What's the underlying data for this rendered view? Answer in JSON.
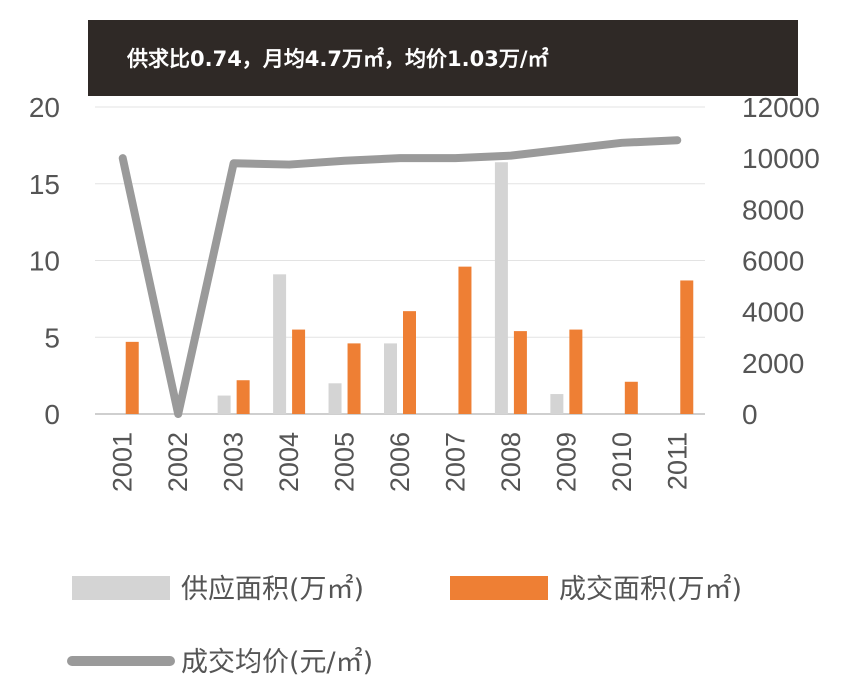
{
  "chart_data": {
    "type": "bar",
    "title": "供求比0.74，月均4.7万㎡，均价1.03万/㎡",
    "categories": [
      "2001",
      "2002",
      "2003",
      "2004",
      "2005",
      "2006",
      "2007",
      "2008",
      "2009",
      "2010",
      "2011"
    ],
    "series": [
      {
        "name": "供应面积(万㎡)",
        "type": "bar",
        "axis": "left",
        "color": "#d4d4d4",
        "values": [
          0,
          0,
          1.2,
          9.1,
          2.0,
          4.6,
          0,
          16.4,
          1.3,
          0,
          0
        ]
      },
      {
        "name": "成交面积(万㎡)",
        "type": "bar",
        "axis": "left",
        "color": "#ee7f34",
        "values": [
          4.7,
          0,
          2.2,
          5.5,
          4.6,
          6.7,
          9.6,
          5.4,
          5.5,
          2.1,
          8.7
        ]
      },
      {
        "name": "成交均价(元/㎡)",
        "type": "line",
        "axis": "right",
        "color": "#9a9a9a",
        "values": [
          10000,
          0,
          9800,
          9750,
          9900,
          10000,
          10000,
          10100,
          10350,
          10600,
          10700
        ]
      }
    ],
    "y_left": {
      "ylim": [
        0,
        20
      ],
      "ticks": [
        "0",
        "5",
        "10",
        "15",
        "20"
      ]
    },
    "y_right": {
      "ylim": [
        0,
        12000
      ],
      "ticks": [
        "0",
        "2000",
        "4000",
        "6000",
        "8000",
        "10000",
        "12000"
      ]
    },
    "grid": true,
    "legend_position": "bottom"
  }
}
